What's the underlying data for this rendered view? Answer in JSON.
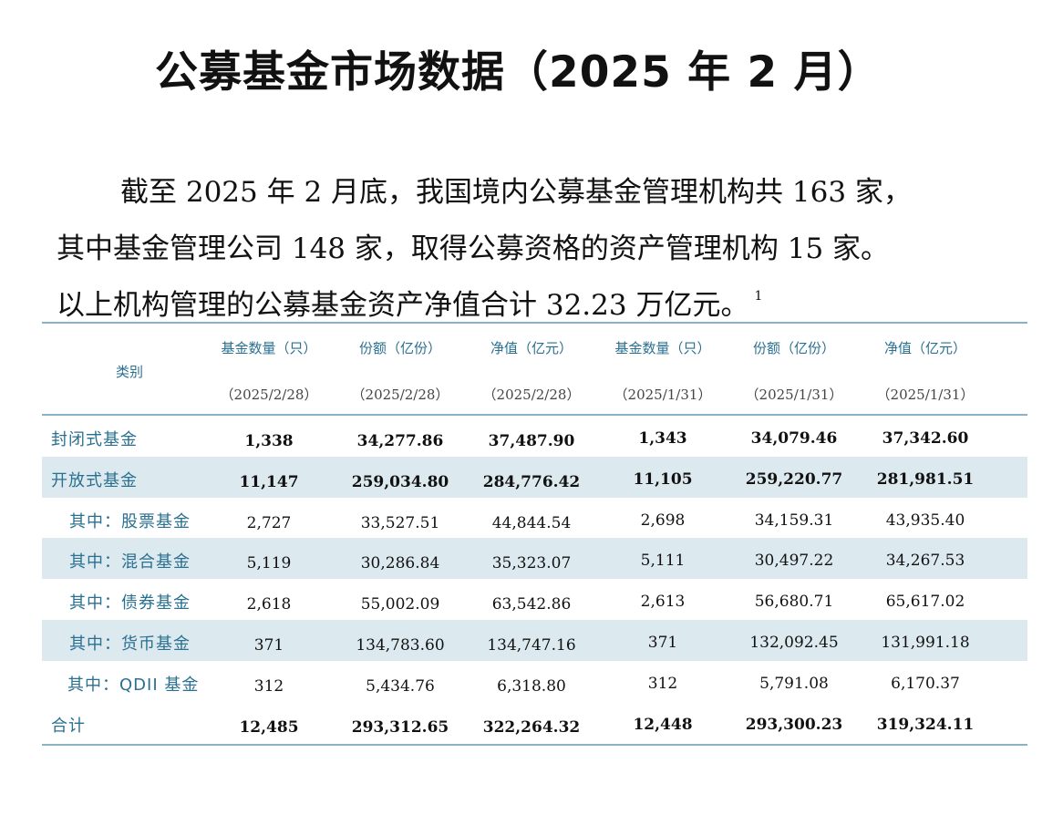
{
  "title": "公募基金市场数据（2025 年 2 月）",
  "paragraph": {
    "line1": "截至 2025 年 2 月底，我国境内公募基金管理机构共 163 家，",
    "line2": "其中基金管理公司 148 家，取得公募资格的资产管理机构 15 家。",
    "line3": "以上机构管理的公募基金资产净值合计 32.23 万亿元。",
    "footnote_mark": "1"
  },
  "table": {
    "category_header": "类别",
    "columns": [
      {
        "label": "基金数量（只）",
        "date": "（2025/2/28）"
      },
      {
        "label": "份额（亿份）",
        "date": "（2025/2/28）"
      },
      {
        "label": "净值（亿元）",
        "date": "（2025/2/28）"
      },
      {
        "label": "基金数量（只）",
        "date": "（2025/1/31）"
      },
      {
        "label": "份额（亿份）",
        "date": "（2025/1/31）"
      },
      {
        "label": "净值（亿元）",
        "date": "（2025/1/31）"
      }
    ],
    "rows": [
      {
        "name": "封闭式基金",
        "values": [
          "1,338",
          "34,277.86",
          "37,487.90",
          "1,343",
          "34,079.46",
          "37,342.60"
        ]
      },
      {
        "name": "开放式基金",
        "values": [
          "11,147",
          "259,034.80",
          "284,776.42",
          "11,105",
          "259,220.77",
          "281,981.51"
        ]
      },
      {
        "name": "其中：股票基金",
        "values": [
          "2,727",
          "33,527.51",
          "44,844.54",
          "2,698",
          "34,159.31",
          "43,935.40"
        ]
      },
      {
        "name": "其中：混合基金",
        "values": [
          "5,119",
          "30,286.84",
          "35,323.07",
          "5,111",
          "30,497.22",
          "34,267.53"
        ]
      },
      {
        "name": "其中：债券基金",
        "values": [
          "2,618",
          "55,002.09",
          "63,542.86",
          "2,613",
          "56,680.71",
          "65,617.02"
        ]
      },
      {
        "name": "其中：货币基金",
        "values": [
          "371",
          "134,783.60",
          "134,747.16",
          "371",
          "132,092.45",
          "131,991.18"
        ]
      },
      {
        "name": "其中：QDII 基金",
        "values": [
          "312",
          "5,434.76",
          "6,318.80",
          "312",
          "5,791.08",
          "6,170.37"
        ]
      },
      {
        "name": "合计",
        "values": [
          "12,485",
          "293,312.65",
          "322,264.32",
          "12,448",
          "293,300.23",
          "319,324.11"
        ]
      }
    ]
  }
}
